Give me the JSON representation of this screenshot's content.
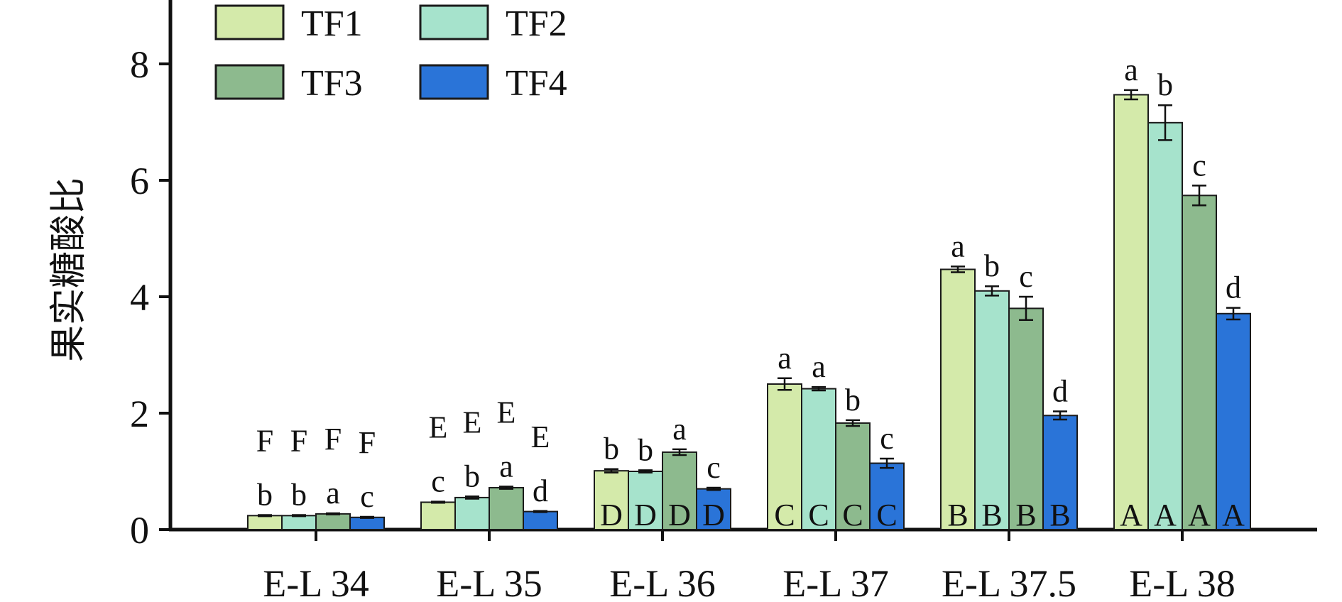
{
  "chart_data": {
    "type": "bar",
    "title": "",
    "xlabel": "",
    "ylabel": "果实糖酸比",
    "ylim": [
      0,
      9
    ],
    "yticks": [
      0,
      2,
      4,
      6,
      8
    ],
    "grid": false,
    "legend_position": "top-left",
    "categories": [
      "E-L 34",
      "E-L 35",
      "E-L 36",
      "E-L 37",
      "E-L 37.5",
      "E-L 38"
    ],
    "series": [
      {
        "name": "TF1",
        "color": "#d4eaaa",
        "values": [
          0.24,
          0.47,
          1.01,
          2.5,
          4.47,
          7.47
        ],
        "errors": [
          0.01,
          0.01,
          0.03,
          0.1,
          0.05,
          0.08
        ],
        "letters": [
          "b",
          "c",
          "b",
          "a",
          "a",
          "a"
        ],
        "group_letters": [
          "F",
          "E",
          "D",
          "C",
          "B",
          "A"
        ]
      },
      {
        "name": "TF2",
        "color": "#a6e3cc",
        "values": [
          0.24,
          0.55,
          1.0,
          2.42,
          4.1,
          6.99
        ],
        "errors": [
          0.01,
          0.02,
          0.02,
          0.03,
          0.08,
          0.3
        ],
        "letters": [
          "b",
          "b",
          "b",
          "a",
          "b",
          "b"
        ],
        "group_letters": [
          "F",
          "E",
          "D",
          "C",
          "B",
          "A"
        ]
      },
      {
        "name": "TF3",
        "color": "#8dba8e",
        "values": [
          0.27,
          0.72,
          1.33,
          1.83,
          3.8,
          5.74
        ],
        "errors": [
          0.01,
          0.02,
          0.05,
          0.05,
          0.2,
          0.17
        ],
        "letters": [
          "a",
          "a",
          "a",
          "b",
          "c",
          "c"
        ],
        "group_letters": [
          "F",
          "E",
          "D",
          "C",
          "B",
          "A"
        ]
      },
      {
        "name": "TF4",
        "color": "#2a74d8",
        "values": [
          0.21,
          0.31,
          0.7,
          1.14,
          1.96,
          3.71
        ],
        "errors": [
          0.01,
          0.01,
          0.02,
          0.08,
          0.07,
          0.1
        ],
        "letters": [
          "c",
          "d",
          "c",
          "c",
          "d",
          "d"
        ],
        "group_letters": [
          "F",
          "E",
          "D",
          "C",
          "B",
          "A"
        ]
      }
    ],
    "group_letter_placement": [
      "above",
      "above",
      "inside",
      "inside",
      "inside",
      "inside"
    ]
  }
}
